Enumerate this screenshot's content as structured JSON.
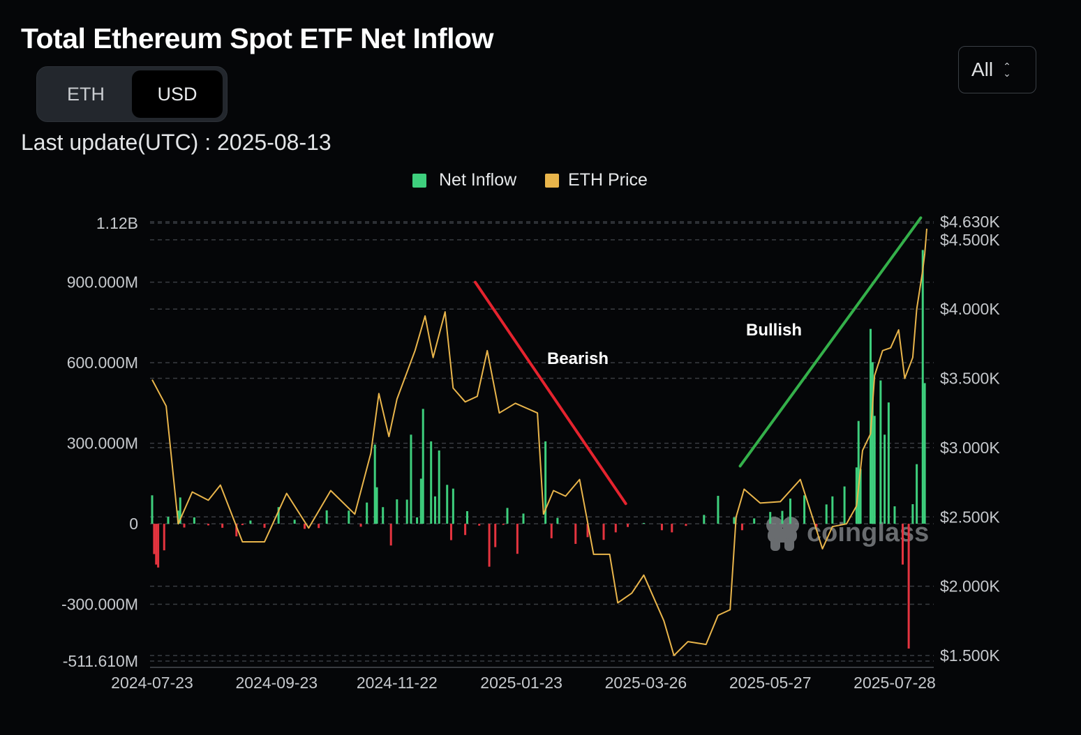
{
  "header": {
    "title": "Total Ethereum Spot ETF Net Inflow",
    "last_update": "Last update(UTC) : 2025-08-13"
  },
  "unit_toggle": {
    "options": [
      "ETH",
      "USD"
    ],
    "selected": "USD"
  },
  "range_select": {
    "value": "All"
  },
  "watermark": "coinglass",
  "chart_data": {
    "type": "bar+line",
    "title": "Total Ethereum Spot ETF Net Inflow",
    "legend": [
      {
        "name": "Net Inflow",
        "color": "#3ecf7d"
      },
      {
        "name": "ETH Price",
        "color": "#e9b54b"
      }
    ],
    "colors": {
      "positive": "#3ecf7d",
      "negative": "#e5343f",
      "price": "#e9b54b",
      "bearish": "#e5232e",
      "bullish": "#34b04a"
    },
    "x_range": [
      "2024-07-23",
      "2025-08-13"
    ],
    "x_ticks": [
      "2024-07-23",
      "2024-09-23",
      "2024-11-22",
      "2025-01-23",
      "2025-03-26",
      "2025-05-27",
      "2025-07-28"
    ],
    "y_left": {
      "range": [
        -511.61,
        1120
      ],
      "unit": "M USD",
      "ticks": [
        {
          "value": 1120,
          "label": "1.12B"
        },
        {
          "value": 900,
          "label": "900.000M"
        },
        {
          "value": 600,
          "label": "600.000M"
        },
        {
          "value": 300,
          "label": "300.000M"
        },
        {
          "value": 0,
          "label": "0"
        },
        {
          "value": -300,
          "label": "-300.000M"
        },
        {
          "value": -511.61,
          "label": "-511.610M"
        }
      ]
    },
    "y_right": {
      "range": [
        1500,
        4630
      ],
      "unit": "USD",
      "ticks": [
        {
          "value": 4630,
          "label": "$4.630K"
        },
        {
          "value": 4500,
          "label": "$4.500K"
        },
        {
          "value": 4000,
          "label": "$4.000K"
        },
        {
          "value": 3500,
          "label": "$3.500K"
        },
        {
          "value": 3000,
          "label": "$3.000K"
        },
        {
          "value": 2500,
          "label": "$2.500K"
        },
        {
          "value": 2000,
          "label": "$2.000K"
        },
        {
          "value": 1500,
          "label": "$1.500K"
        }
      ]
    },
    "net_inflow_series": [
      {
        "date": "2024-07-23",
        "value": 106
      },
      {
        "date": "2024-07-24",
        "value": -113
      },
      {
        "date": "2024-07-25",
        "value": -152
      },
      {
        "date": "2024-07-26",
        "value": -163
      },
      {
        "date": "2024-07-29",
        "value": -99
      },
      {
        "date": "2024-07-31",
        "value": 26
      },
      {
        "date": "2024-08-05",
        "value": 49
      },
      {
        "date": "2024-08-06",
        "value": 98
      },
      {
        "date": "2024-08-08",
        "value": -14
      },
      {
        "date": "2024-08-13",
        "value": 24
      },
      {
        "date": "2024-08-20",
        "value": -6
      },
      {
        "date": "2024-08-27",
        "value": -15
      },
      {
        "date": "2024-09-03",
        "value": -47
      },
      {
        "date": "2024-09-06",
        "value": -5
      },
      {
        "date": "2024-09-10",
        "value": 12
      },
      {
        "date": "2024-09-17",
        "value": -15
      },
      {
        "date": "2024-09-24",
        "value": 62
      },
      {
        "date": "2024-10-02",
        "value": 15
      },
      {
        "date": "2024-10-07",
        "value": -19
      },
      {
        "date": "2024-10-14",
        "value": -16
      },
      {
        "date": "2024-10-18",
        "value": 50
      },
      {
        "date": "2024-10-29",
        "value": 49
      },
      {
        "date": "2024-11-04",
        "value": -11
      },
      {
        "date": "2024-11-07",
        "value": 79
      },
      {
        "date": "2024-11-11",
        "value": 295
      },
      {
        "date": "2024-11-12",
        "value": 136
      },
      {
        "date": "2024-11-15",
        "value": 62
      },
      {
        "date": "2024-11-19",
        "value": -81
      },
      {
        "date": "2024-11-22",
        "value": 91
      },
      {
        "date": "2024-11-27",
        "value": 90
      },
      {
        "date": "2024-11-29",
        "value": 332
      },
      {
        "date": "2024-12-02",
        "value": 24
      },
      {
        "date": "2024-12-04",
        "value": 168
      },
      {
        "date": "2024-12-05",
        "value": 428
      },
      {
        "date": "2024-12-09",
        "value": 307
      },
      {
        "date": "2024-12-11",
        "value": 102
      },
      {
        "date": "2024-12-13",
        "value": 273
      },
      {
        "date": "2024-12-17",
        "value": 145
      },
      {
        "date": "2024-12-19",
        "value": -61
      },
      {
        "date": "2024-12-20",
        "value": 131
      },
      {
        "date": "2024-12-26",
        "value": -42
      },
      {
        "date": "2024-12-27",
        "value": 47
      },
      {
        "date": "2025-01-02",
        "value": -7
      },
      {
        "date": "2025-01-07",
        "value": -160
      },
      {
        "date": "2025-01-10",
        "value": -87
      },
      {
        "date": "2025-01-14",
        "value": -4
      },
      {
        "date": "2025-01-16",
        "value": 59
      },
      {
        "date": "2025-01-21",
        "value": -112
      },
      {
        "date": "2025-01-24",
        "value": 38
      },
      {
        "date": "2025-02-04",
        "value": 307
      },
      {
        "date": "2025-02-07",
        "value": -54
      },
      {
        "date": "2025-02-10",
        "value": 22
      },
      {
        "date": "2025-02-19",
        "value": -75
      },
      {
        "date": "2025-02-25",
        "value": -50
      },
      {
        "date": "2025-03-05",
        "value": -60
      },
      {
        "date": "2025-03-11",
        "value": -32
      },
      {
        "date": "2025-03-17",
        "value": -12
      },
      {
        "date": "2025-03-25",
        "value": 3
      },
      {
        "date": "2025-04-03",
        "value": -24
      },
      {
        "date": "2025-04-08",
        "value": -32
      },
      {
        "date": "2025-04-15",
        "value": -8
      },
      {
        "date": "2025-04-24",
        "value": 33
      },
      {
        "date": "2025-05-01",
        "value": 104
      },
      {
        "date": "2025-05-09",
        "value": 24
      },
      {
        "date": "2025-05-13",
        "value": -24
      },
      {
        "date": "2025-05-19",
        "value": 20
      },
      {
        "date": "2025-05-27",
        "value": 44
      },
      {
        "date": "2025-06-02",
        "value": 48
      },
      {
        "date": "2025-06-06",
        "value": 94
      },
      {
        "date": "2025-06-13",
        "value": 106
      },
      {
        "date": "2025-06-19",
        "value": -12
      },
      {
        "date": "2025-06-24",
        "value": 72
      },
      {
        "date": "2025-06-27",
        "value": 102
      },
      {
        "date": "2025-07-03",
        "value": 139
      },
      {
        "date": "2025-07-09",
        "value": 210
      },
      {
        "date": "2025-07-10",
        "value": 383
      },
      {
        "date": "2025-07-11",
        "value": 204
      },
      {
        "date": "2025-07-16",
        "value": 726
      },
      {
        "date": "2025-07-17",
        "value": 602
      },
      {
        "date": "2025-07-18",
        "value": 402
      },
      {
        "date": "2025-07-21",
        "value": 534
      },
      {
        "date": "2025-07-23",
        "value": 332
      },
      {
        "date": "2025-07-25",
        "value": 452
      },
      {
        "date": "2025-07-28",
        "value": 65
      },
      {
        "date": "2025-08-01",
        "value": -152
      },
      {
        "date": "2025-08-04",
        "value": -465
      },
      {
        "date": "2025-08-06",
        "value": 73
      },
      {
        "date": "2025-08-08",
        "value": 222
      },
      {
        "date": "2025-08-11",
        "value": 1020
      },
      {
        "date": "2025-08-12",
        "value": 524
      }
    ],
    "eth_price_series": [
      {
        "date": "2024-07-23",
        "value": 3490
      },
      {
        "date": "2024-07-30",
        "value": 3300
      },
      {
        "date": "2024-08-05",
        "value": 2450
      },
      {
        "date": "2024-08-12",
        "value": 2680
      },
      {
        "date": "2024-08-20",
        "value": 2620
      },
      {
        "date": "2024-08-26",
        "value": 2730
      },
      {
        "date": "2024-09-06",
        "value": 2320
      },
      {
        "date": "2024-09-17",
        "value": 2320
      },
      {
        "date": "2024-09-28",
        "value": 2670
      },
      {
        "date": "2024-10-09",
        "value": 2420
      },
      {
        "date": "2024-10-20",
        "value": 2690
      },
      {
        "date": "2024-11-01",
        "value": 2520
      },
      {
        "date": "2024-11-09",
        "value": 2960
      },
      {
        "date": "2024-11-13",
        "value": 3390
      },
      {
        "date": "2024-11-18",
        "value": 3080
      },
      {
        "date": "2024-11-22",
        "value": 3350
      },
      {
        "date": "2024-12-01",
        "value": 3700
      },
      {
        "date": "2024-12-06",
        "value": 3950
      },
      {
        "date": "2024-12-10",
        "value": 3650
      },
      {
        "date": "2024-12-16",
        "value": 3980
      },
      {
        "date": "2024-12-20",
        "value": 3430
      },
      {
        "date": "2024-12-26",
        "value": 3330
      },
      {
        "date": "2025-01-01",
        "value": 3370
      },
      {
        "date": "2025-01-06",
        "value": 3700
      },
      {
        "date": "2025-01-12",
        "value": 3250
      },
      {
        "date": "2025-01-20",
        "value": 3320
      },
      {
        "date": "2025-01-31",
        "value": 3250
      },
      {
        "date": "2025-02-03",
        "value": 2520
      },
      {
        "date": "2025-02-08",
        "value": 2690
      },
      {
        "date": "2025-02-14",
        "value": 2650
      },
      {
        "date": "2025-02-21",
        "value": 2770
      },
      {
        "date": "2025-02-28",
        "value": 2230
      },
      {
        "date": "2025-03-08",
        "value": 2230
      },
      {
        "date": "2025-03-12",
        "value": 1880
      },
      {
        "date": "2025-03-19",
        "value": 1950
      },
      {
        "date": "2025-03-25",
        "value": 2080
      },
      {
        "date": "2025-04-04",
        "value": 1750
      },
      {
        "date": "2025-04-09",
        "value": 1500
      },
      {
        "date": "2025-04-16",
        "value": 1600
      },
      {
        "date": "2025-04-25",
        "value": 1580
      },
      {
        "date": "2025-05-01",
        "value": 1790
      },
      {
        "date": "2025-05-07",
        "value": 1830
      },
      {
        "date": "2025-05-10",
        "value": 2500
      },
      {
        "date": "2025-05-14",
        "value": 2700
      },
      {
        "date": "2025-05-22",
        "value": 2600
      },
      {
        "date": "2025-06-01",
        "value": 2610
      },
      {
        "date": "2025-06-11",
        "value": 2770
      },
      {
        "date": "2025-06-17",
        "value": 2500
      },
      {
        "date": "2025-06-22",
        "value": 2270
      },
      {
        "date": "2025-06-27",
        "value": 2430
      },
      {
        "date": "2025-07-04",
        "value": 2450
      },
      {
        "date": "2025-07-09",
        "value": 2580
      },
      {
        "date": "2025-07-12",
        "value": 2980
      },
      {
        "date": "2025-07-16",
        "value": 3100
      },
      {
        "date": "2025-07-18",
        "value": 3520
      },
      {
        "date": "2025-07-22",
        "value": 3700
      },
      {
        "date": "2025-07-26",
        "value": 3720
      },
      {
        "date": "2025-07-30",
        "value": 3850
      },
      {
        "date": "2025-08-02",
        "value": 3500
      },
      {
        "date": "2025-08-06",
        "value": 3650
      },
      {
        "date": "2025-08-08",
        "value": 4000
      },
      {
        "date": "2025-08-11",
        "value": 4280
      },
      {
        "date": "2025-08-12",
        "value": 4400
      },
      {
        "date": "2025-08-13",
        "value": 4580
      }
    ],
    "annotations": [
      {
        "label": "Bearish",
        "trend": "down",
        "from": {
          "date": "2024-12-31",
          "value": 900
        },
        "to": {
          "date": "2025-03-16",
          "value": 75
        },
        "color": "#e5232e"
      },
      {
        "label": "Bullish",
        "trend": "up",
        "from": {
          "date": "2025-05-12",
          "value": 215
        },
        "to": {
          "date": "2025-08-10",
          "value": 1140
        },
        "color": "#34b04a"
      }
    ]
  }
}
